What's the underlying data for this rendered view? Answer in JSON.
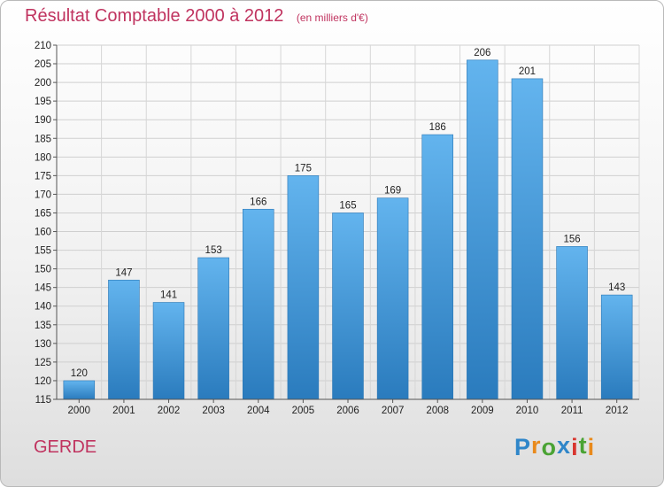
{
  "title": "Résultat Comptable 2000 à 2012",
  "subtitle": "(en milliers d'€)",
  "commune": "GERDE",
  "logo": {
    "name": "Proxiti",
    "letters": [
      {
        "ch": "P",
        "color": "#2f86c9"
      },
      {
        "ch": "r",
        "color": "#e98a1c"
      },
      {
        "ch": "o",
        "color": "#4aa334"
      },
      {
        "ch": "x",
        "color": "#2f86c9"
      },
      {
        "ch": "i",
        "color": "#d8362f"
      },
      {
        "ch": "t",
        "color": "#4aa334"
      },
      {
        "ch": "i",
        "color": "#e98a1c"
      }
    ]
  },
  "colors": {
    "bar_top": "#63b4ee",
    "bar_bottom": "#2a7bbd",
    "title": "#c0335f"
  },
  "chart_data": {
    "type": "bar",
    "title": "Résultat Comptable 2000 à 2012",
    "subtitle": "(en milliers d'€)",
    "categories": [
      "2000",
      "2001",
      "2002",
      "2003",
      "2004",
      "2005",
      "2006",
      "2007",
      "2008",
      "2009",
      "2010",
      "2011",
      "2012"
    ],
    "values": [
      120,
      147,
      141,
      153,
      166,
      175,
      165,
      169,
      186,
      206,
      201,
      156,
      143
    ],
    "ylim": [
      115,
      210
    ],
    "ytick_step": 5,
    "grid": true,
    "legend": "none"
  }
}
